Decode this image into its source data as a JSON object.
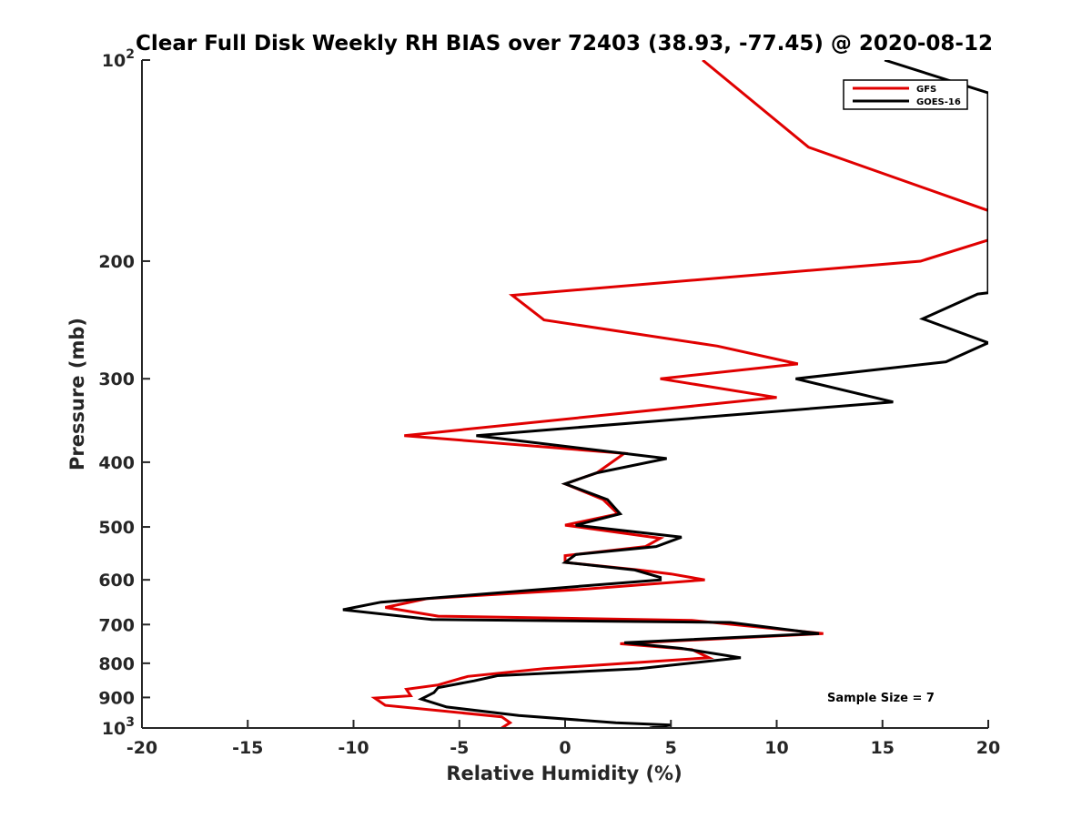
{
  "chart_data": {
    "type": "line",
    "title": "Clear Full Disk Weekly RH BIAS over 72403 (38.93, -77.45) @ 2020-08-12",
    "xlabel": "Relative Humidity (%)",
    "ylabel": "Pressure (mb)",
    "xlim": [
      -20,
      20
    ],
    "ylim": [
      100,
      1000
    ],
    "y_scale": "log",
    "y_reversed": true,
    "x_ticks": [
      "-20",
      "-15",
      "-10",
      "-5",
      "0",
      "5",
      "10",
      "15",
      "20"
    ],
    "y_ticks": [
      {
        "value": 100,
        "base": "10",
        "exp": "2"
      },
      {
        "value": 200,
        "base": "200",
        "exp": ""
      },
      {
        "value": 300,
        "base": "300",
        "exp": ""
      },
      {
        "value": 400,
        "base": "400",
        "exp": ""
      },
      {
        "value": 500,
        "base": "500",
        "exp": ""
      },
      {
        "value": 600,
        "base": "600",
        "exp": ""
      },
      {
        "value": 700,
        "base": "700",
        "exp": ""
      },
      {
        "value": 800,
        "base": "800",
        "exp": ""
      },
      {
        "value": 900,
        "base": "900",
        "exp": ""
      },
      {
        "value": 1000,
        "base": "10",
        "exp": "3"
      }
    ],
    "grid": false,
    "legend_position": "top-right",
    "annotation": "Sample Size = 7",
    "series": [
      {
        "name": "GFS",
        "color": "#e00000",
        "points": [
          [
            6.5,
            100
          ],
          [
            11.5,
            135
          ],
          [
            20.0,
            168
          ],
          [
            20.0,
            186
          ],
          [
            16.8,
            200
          ],
          [
            -2.5,
            225
          ],
          [
            -1.0,
            245
          ],
          [
            7.2,
            268
          ],
          [
            11.0,
            285
          ],
          [
            4.5,
            300
          ],
          [
            10.0,
            320
          ],
          [
            -7.6,
            365
          ],
          [
            2.8,
            388
          ],
          [
            1.5,
            415
          ],
          [
            0.0,
            431
          ],
          [
            1.8,
            455
          ],
          [
            2.5,
            478
          ],
          [
            0.0,
            497
          ],
          [
            4.5,
            520
          ],
          [
            3.8,
            535
          ],
          [
            0.0,
            552
          ],
          [
            0.0,
            565
          ],
          [
            3.5,
            580
          ],
          [
            5.0,
            588
          ],
          [
            6.6,
            600
          ],
          [
            0.8,
            620
          ],
          [
            -6.5,
            640
          ],
          [
            -8.5,
            660
          ],
          [
            -6.0,
            680
          ],
          [
            6.0,
            690
          ],
          [
            12.2,
            722
          ],
          [
            2.6,
            748
          ],
          [
            6.0,
            763
          ],
          [
            6.8,
            785
          ],
          [
            -1.0,
            815
          ],
          [
            -4.6,
            837
          ],
          [
            -6.0,
            862
          ],
          [
            -7.5,
            875
          ],
          [
            -7.3,
            895
          ],
          [
            -9.0,
            902
          ],
          [
            -8.5,
            925
          ],
          [
            -3.0,
            962
          ],
          [
            -2.6,
            982
          ],
          [
            -3.0,
            1000
          ]
        ]
      },
      {
        "name": "GOES-16",
        "color": "#000000",
        "points": [
          [
            15.1,
            100
          ],
          [
            20.0,
            112
          ],
          [
            20.0,
            223
          ],
          [
            19.5,
            224
          ],
          [
            16.9,
            244
          ],
          [
            20.0,
            265
          ],
          [
            18.0,
            283
          ],
          [
            10.9,
            300
          ],
          [
            15.5,
            325
          ],
          [
            -4.2,
            365
          ],
          [
            4.8,
            395
          ],
          [
            1.5,
            415
          ],
          [
            0.0,
            431
          ],
          [
            2.0,
            455
          ],
          [
            2.6,
            478
          ],
          [
            0.5,
            497
          ],
          [
            5.5,
            518
          ],
          [
            4.3,
            535
          ],
          [
            0.5,
            550
          ],
          [
            0.0,
            565
          ],
          [
            3.3,
            580
          ],
          [
            4.5,
            595
          ],
          [
            4.5,
            600
          ],
          [
            -8.7,
            648
          ],
          [
            -10.5,
            665
          ],
          [
            -6.3,
            688
          ],
          [
            7.8,
            695
          ],
          [
            12.0,
            722
          ],
          [
            2.8,
            745
          ],
          [
            5.5,
            760
          ],
          [
            8.3,
            785
          ],
          [
            3.5,
            815
          ],
          [
            -3.2,
            835
          ],
          [
            -4.3,
            850
          ],
          [
            -6.0,
            870
          ],
          [
            -6.2,
            885
          ],
          [
            -6.8,
            905
          ],
          [
            -5.6,
            930
          ],
          [
            -2.2,
            958
          ],
          [
            2.4,
            982
          ],
          [
            5.0,
            990
          ],
          [
            4.0,
            1000
          ]
        ]
      }
    ]
  }
}
